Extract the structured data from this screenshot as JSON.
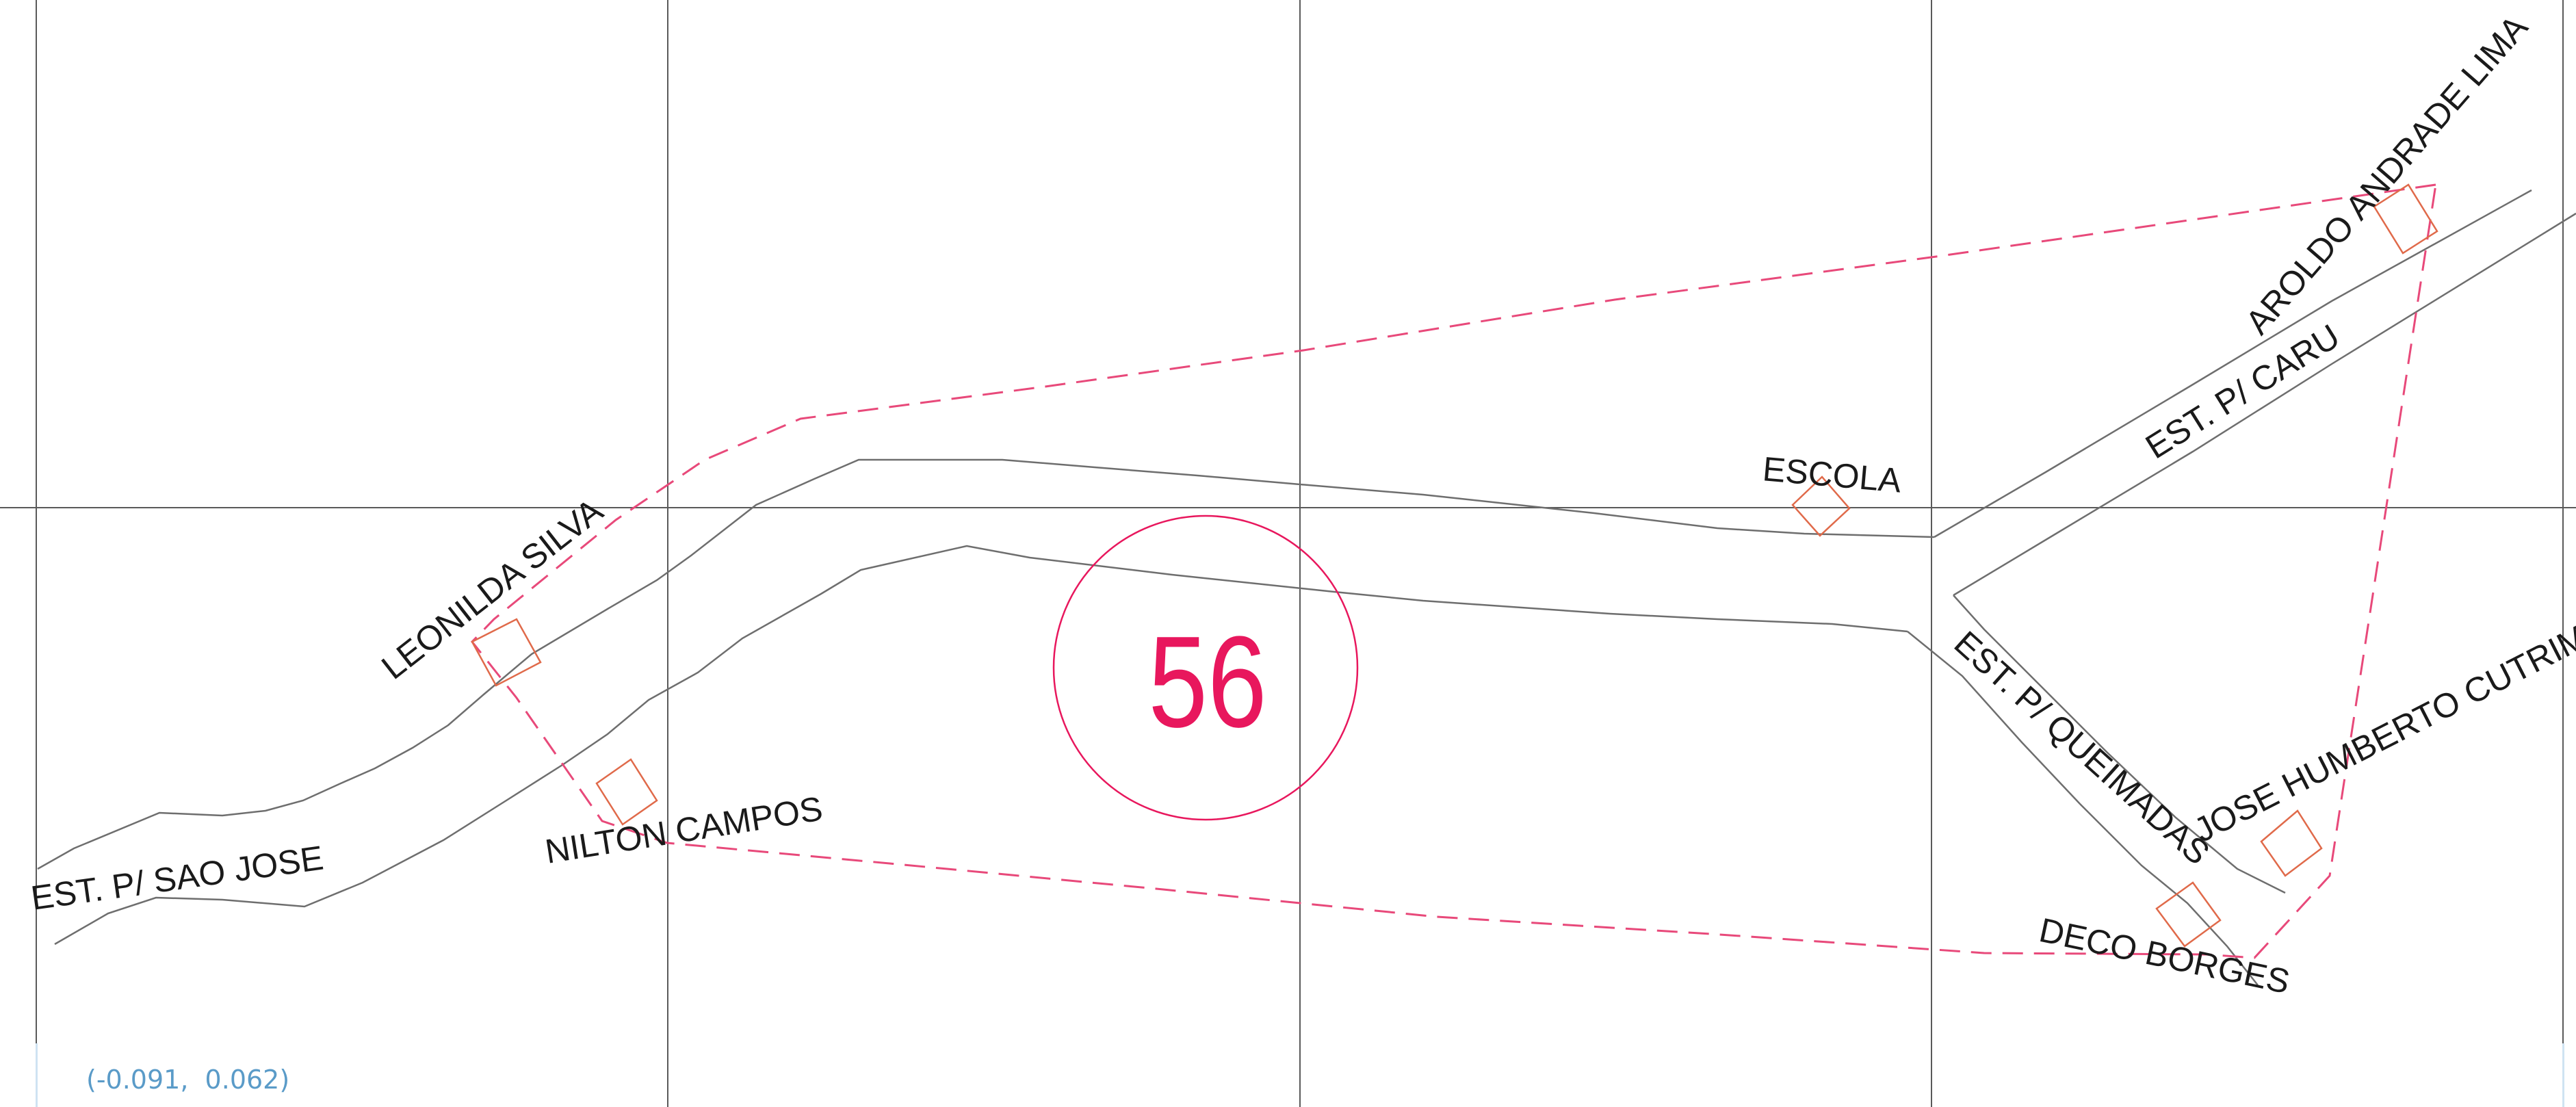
{
  "colors": {
    "grid": "#5a5a5a",
    "road": "#6e6e6e",
    "boundary": "#e8497a",
    "building": "#e06a4a",
    "number": "#e8175d",
    "label": "#1a1a1a",
    "coords": "#5a9bc8"
  },
  "map": {
    "area_number": "56",
    "roads": [
      "EST. P/ SAO JOSE",
      "EST. P/ CARU",
      "EST. P/ QUEIMADAS"
    ],
    "places": [
      "LEONILDA SILVA",
      "NILTON CAMPOS",
      "ESCOLA",
      "AROLDO ANDRADE LIMA",
      "JOSE HUMBERTO CUTRIM",
      "DECO BORGES"
    ]
  },
  "status": {
    "cursor_coords": "(-0.091,  0.062)"
  }
}
